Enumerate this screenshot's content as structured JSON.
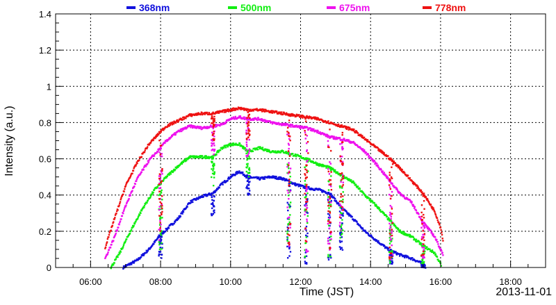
{
  "chart_data": {
    "type": "scatter",
    "title": "",
    "xlabel": "Time (JST)",
    "ylabel": "Intensity (a.u.)",
    "date_label": "2013-11-01",
    "xlim": [
      "05:00",
      "19:00"
    ],
    "ylim": [
      0,
      1.4
    ],
    "x_ticks": [
      "06:00",
      "08:00",
      "10:00",
      "12:00",
      "14:00",
      "16:00",
      "18:00"
    ],
    "y_ticks": [
      "0",
      "0.2",
      "0.4",
      "0.6",
      "0.8",
      "1",
      "1.2",
      "1.4"
    ],
    "grid": true,
    "legend_position": "top",
    "series": [
      {
        "name": "368nm",
        "color": "#1010dd",
        "points": [
          [
            "06:56",
            0.0
          ],
          [
            "07:20",
            0.04
          ],
          [
            "07:40",
            0.1
          ],
          [
            "08:00",
            0.18
          ],
          [
            "08:10",
            0.21
          ],
          [
            "08:30",
            0.27
          ],
          [
            "08:50",
            0.36
          ],
          [
            "09:10",
            0.39
          ],
          [
            "09:30",
            0.41
          ],
          [
            "09:45",
            0.46
          ],
          [
            "10:00",
            0.5
          ],
          [
            "10:15",
            0.53
          ],
          [
            "10:30",
            0.5
          ],
          [
            "10:50",
            0.49
          ],
          [
            "11:10",
            0.5
          ],
          [
            "11:30",
            0.49
          ],
          [
            "11:50",
            0.46
          ],
          [
            "12:10",
            0.44
          ],
          [
            "12:30",
            0.43
          ],
          [
            "12:50",
            0.41
          ],
          [
            "13:10",
            0.33
          ],
          [
            "13:30",
            0.27
          ],
          [
            "13:50",
            0.2
          ],
          [
            "14:10",
            0.15
          ],
          [
            "14:30",
            0.1
          ],
          [
            "14:50",
            0.07
          ],
          [
            "15:10",
            0.05
          ],
          [
            "15:30",
            0.02
          ],
          [
            "15:35",
            0.0
          ]
        ]
      },
      {
        "name": "500nm",
        "color": "#11ee11",
        "points": [
          [
            "06:35",
            0.0
          ],
          [
            "06:50",
            0.08
          ],
          [
            "07:10",
            0.21
          ],
          [
            "07:30",
            0.33
          ],
          [
            "07:50",
            0.43
          ],
          [
            "08:10",
            0.5
          ],
          [
            "08:30",
            0.56
          ],
          [
            "08:50",
            0.61
          ],
          [
            "09:10",
            0.61
          ],
          [
            "09:30",
            0.61
          ],
          [
            "09:45",
            0.66
          ],
          [
            "10:00",
            0.68
          ],
          [
            "10:15",
            0.68
          ],
          [
            "10:30",
            0.64
          ],
          [
            "10:50",
            0.66
          ],
          [
            "11:10",
            0.64
          ],
          [
            "11:30",
            0.64
          ],
          [
            "11:50",
            0.62
          ],
          [
            "12:10",
            0.6
          ],
          [
            "12:30",
            0.57
          ],
          [
            "12:50",
            0.55
          ],
          [
            "13:10",
            0.51
          ],
          [
            "13:30",
            0.47
          ],
          [
            "13:50",
            0.4
          ],
          [
            "14:10",
            0.34
          ],
          [
            "14:30",
            0.27
          ],
          [
            "14:50",
            0.2
          ],
          [
            "15:10",
            0.17
          ],
          [
            "15:30",
            0.12
          ],
          [
            "15:50",
            0.08
          ],
          [
            "16:00",
            0.02
          ],
          [
            "16:02",
            0.0
          ]
        ]
      },
      {
        "name": "675nm",
        "color": "#ee11ee",
        "points": [
          [
            "06:25",
            0.05
          ],
          [
            "06:40",
            0.16
          ],
          [
            "07:00",
            0.34
          ],
          [
            "07:20",
            0.49
          ],
          [
            "07:40",
            0.59
          ],
          [
            "08:00",
            0.66
          ],
          [
            "08:10",
            0.7
          ],
          [
            "08:30",
            0.75
          ],
          [
            "08:50",
            0.78
          ],
          [
            "09:10",
            0.77
          ],
          [
            "09:30",
            0.78
          ],
          [
            "09:45",
            0.79
          ],
          [
            "10:00",
            0.82
          ],
          [
            "10:15",
            0.83
          ],
          [
            "10:30",
            0.82
          ],
          [
            "10:50",
            0.82
          ],
          [
            "11:10",
            0.8
          ],
          [
            "11:30",
            0.79
          ],
          [
            "11:50",
            0.78
          ],
          [
            "12:10",
            0.77
          ],
          [
            "12:30",
            0.75
          ],
          [
            "12:50",
            0.72
          ],
          [
            "13:10",
            0.71
          ],
          [
            "13:30",
            0.69
          ],
          [
            "13:50",
            0.64
          ],
          [
            "14:10",
            0.57
          ],
          [
            "14:30",
            0.49
          ],
          [
            "14:50",
            0.41
          ],
          [
            "15:10",
            0.36
          ],
          [
            "15:30",
            0.25
          ],
          [
            "15:50",
            0.17
          ],
          [
            "16:00",
            0.1
          ],
          [
            "16:05",
            0.07
          ]
        ]
      },
      {
        "name": "778nm",
        "color": "#ee1111",
        "points": [
          [
            "06:25",
            0.11
          ],
          [
            "06:40",
            0.26
          ],
          [
            "07:00",
            0.45
          ],
          [
            "07:20",
            0.58
          ],
          [
            "07:40",
            0.68
          ],
          [
            "08:00",
            0.75
          ],
          [
            "08:10",
            0.78
          ],
          [
            "08:30",
            0.81
          ],
          [
            "08:50",
            0.84
          ],
          [
            "09:10",
            0.85
          ],
          [
            "09:30",
            0.85
          ],
          [
            "09:45",
            0.86
          ],
          [
            "10:00",
            0.87
          ],
          [
            "10:15",
            0.88
          ],
          [
            "10:30",
            0.87
          ],
          [
            "10:50",
            0.87
          ],
          [
            "11:10",
            0.86
          ],
          [
            "11:30",
            0.85
          ],
          [
            "11:50",
            0.84
          ],
          [
            "12:10",
            0.83
          ],
          [
            "12:30",
            0.82
          ],
          [
            "12:50",
            0.8
          ],
          [
            "13:10",
            0.78
          ],
          [
            "13:30",
            0.76
          ],
          [
            "13:50",
            0.71
          ],
          [
            "14:10",
            0.66
          ],
          [
            "14:30",
            0.61
          ],
          [
            "14:50",
            0.55
          ],
          [
            "15:10",
            0.48
          ],
          [
            "15:30",
            0.41
          ],
          [
            "15:50",
            0.31
          ],
          [
            "16:00",
            0.22
          ],
          [
            "16:05",
            0.14
          ]
        ]
      }
    ],
    "cloud_dips": {
      "368nm": [
        [
          "08:00",
          0.05
        ],
        [
          "09:30",
          0.28
        ],
        [
          "10:30",
          0.4
        ],
        [
          "11:40",
          0.05
        ],
        [
          "12:10",
          0.02
        ],
        [
          "12:50",
          0.04
        ],
        [
          "13:10",
          0.08
        ],
        [
          "14:35",
          0.02
        ],
        [
          "15:30",
          0.0
        ]
      ],
      "500nm": [
        [
          "08:00",
          0.1
        ],
        [
          "09:30",
          0.45
        ],
        [
          "10:30",
          0.5
        ],
        [
          "11:40",
          0.08
        ],
        [
          "12:10",
          0.05
        ],
        [
          "12:50",
          0.05
        ],
        [
          "13:10",
          0.15
        ],
        [
          "14:35",
          0.02
        ],
        [
          "15:30",
          0.02
        ]
      ],
      "675nm": [
        [
          "08:00",
          0.15
        ],
        [
          "09:30",
          0.6
        ],
        [
          "10:30",
          0.6
        ],
        [
          "11:40",
          0.1
        ],
        [
          "12:10",
          0.08
        ],
        [
          "12:50",
          0.06
        ],
        [
          "13:10",
          0.2
        ],
        [
          "14:35",
          0.03
        ],
        [
          "15:30",
          0.05
        ]
      ],
      "778nm": [
        [
          "08:00",
          0.2
        ],
        [
          "09:30",
          0.7
        ],
        [
          "10:30",
          0.7
        ],
        [
          "11:40",
          0.12
        ],
        [
          "12:10",
          0.1
        ],
        [
          "12:50",
          0.08
        ],
        [
          "13:10",
          0.25
        ],
        [
          "14:35",
          0.04
        ],
        [
          "15:30",
          0.06
        ]
      ]
    }
  }
}
